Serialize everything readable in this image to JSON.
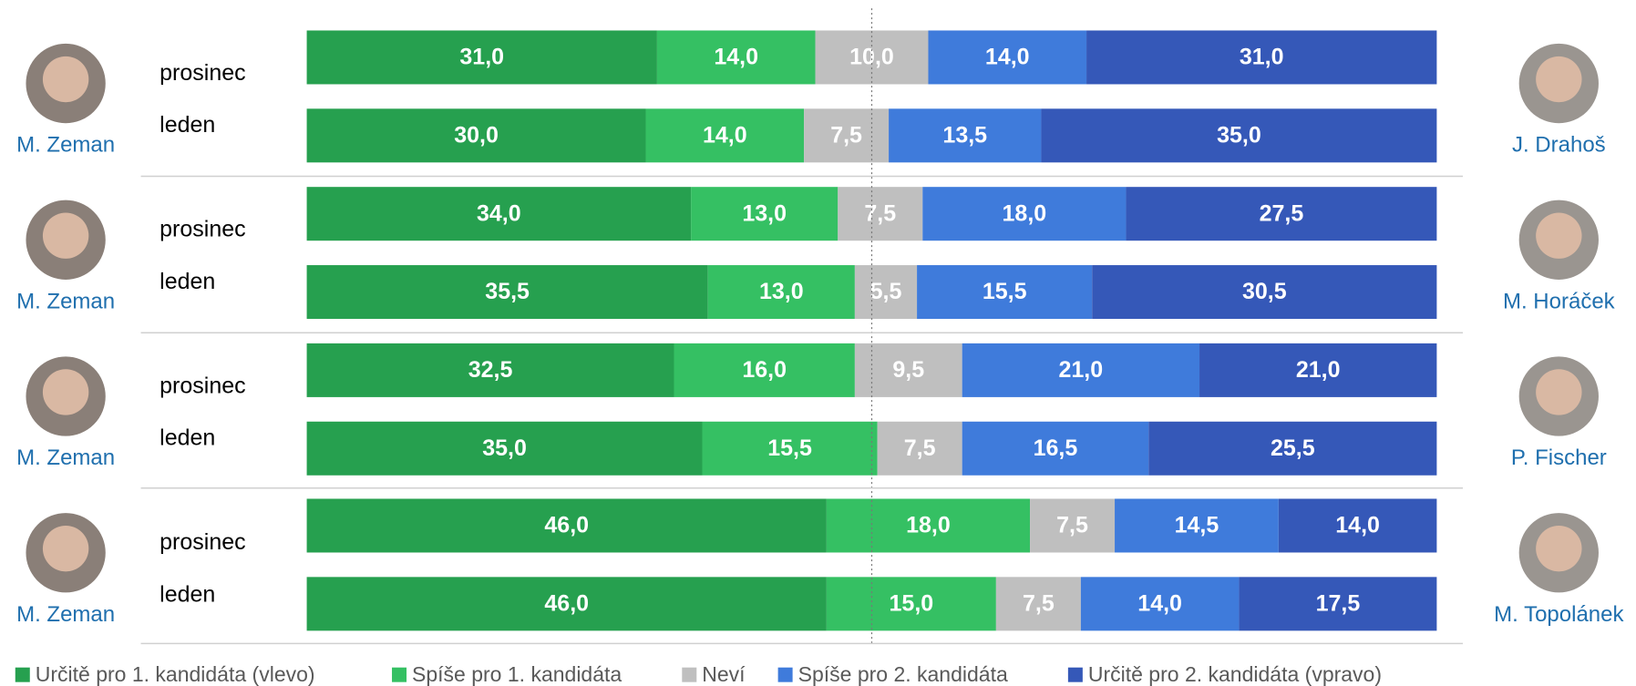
{
  "chart_data": {
    "type": "stacked-bar-horizontal",
    "categories": [
      "prosinec",
      "leden",
      "prosinec",
      "leden",
      "prosinec",
      "leden",
      "prosinec",
      "leden"
    ],
    "pairs": [
      {
        "left": "M. Zeman",
        "right": "J. Drahoš"
      },
      {
        "left": "M. Zeman",
        "right": "M. Horáček"
      },
      {
        "left": "M. Zeman",
        "right": "P. Fischer"
      },
      {
        "left": "M. Zeman",
        "right": "M. Topolánek"
      }
    ],
    "series": [
      {
        "name": "Určitě pro 1. kandidáta (vlevo)",
        "color": "#26a04f",
        "values": [
          31,
          30,
          34,
          35.5,
          32.5,
          35,
          46,
          46
        ],
        "value_labels": [
          "31,0",
          "30,0",
          "34,0",
          "35,5",
          "32,5",
          "35,0",
          "46,0",
          "46,0"
        ]
      },
      {
        "name": "Spíše pro 1. kandidáta",
        "color": "#35c063",
        "values": [
          14,
          14,
          13,
          13,
          16,
          15.5,
          18,
          15
        ],
        "value_labels": [
          "14,0",
          "14,0",
          "13,0",
          "13,0",
          "16,0",
          "15,5",
          "18,0",
          "15,0"
        ]
      },
      {
        "name": "Neví",
        "color": "#bfbfbf",
        "values": [
          10,
          7.5,
          7.5,
          5.5,
          9.5,
          7.5,
          7.5,
          7.5
        ],
        "value_labels": [
          "10,0",
          "7,5",
          "7,5",
          "5,5",
          "9,5",
          "7,5",
          "7,5",
          "7,5"
        ]
      },
      {
        "name": "Spíše pro 2. kandidáta",
        "color": "#3f7bdb",
        "values": [
          14,
          13.5,
          18,
          15.5,
          21,
          16.5,
          14.5,
          14
        ],
        "value_labels": [
          "14,0",
          "13,5",
          "18,0",
          "15,5",
          "21,0",
          "16,5",
          "14,5",
          "14,0"
        ]
      },
      {
        "name": "Určitě pro 2. kandidáta (vpravo)",
        "color": "#3558b8",
        "values": [
          31,
          35,
          27.5,
          30.5,
          21,
          25.5,
          14,
          17.5
        ],
        "value_labels": [
          "31,0",
          "35,0",
          "27,5",
          "30,5",
          "21,0",
          "25,5",
          "14,0",
          "17,5"
        ]
      }
    ],
    "xlim": [
      0,
      100
    ],
    "midline": 50
  }
}
